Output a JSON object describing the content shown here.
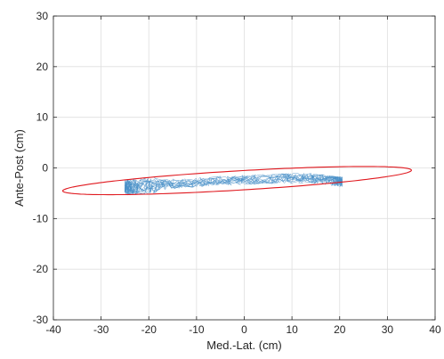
{
  "chart_data": {
    "type": "scatter",
    "title": "",
    "xlabel": "Med.-Lat. (cm)",
    "ylabel": "Ante-Post (cm)",
    "xlim": [
      -40,
      40
    ],
    "ylim": [
      -30,
      30
    ],
    "xticks": [
      -40,
      -30,
      -20,
      -10,
      0,
      10,
      20,
      30,
      40
    ],
    "yticks": [
      -30,
      -20,
      -10,
      0,
      10,
      20,
      30
    ],
    "xtick_labels": [
      "-40",
      "-30",
      "-20",
      "-10",
      "0",
      "10",
      "20",
      "30",
      "40"
    ],
    "ytick_labels": [
      "-30",
      "-20",
      "-10",
      "0",
      "10",
      "20",
      "30"
    ],
    "grid": true,
    "series": [
      {
        "kind": "trajectory",
        "color": "#4a90c8",
        "x_range": [
          -25,
          20.5
        ],
        "y_range": [
          -6.5,
          -0.5
        ],
        "trend": [
          [
            -25,
            -3.8
          ],
          [
            -22,
            -3.7
          ],
          [
            -20,
            -3.5
          ],
          [
            -17,
            -3.3
          ],
          [
            -14,
            -3.1
          ],
          [
            -11,
            -2.9
          ],
          [
            -8,
            -2.8
          ],
          [
            -5,
            -2.6
          ],
          [
            -2,
            -2.5
          ],
          [
            1,
            -2.3
          ],
          [
            4,
            -2.2
          ],
          [
            7,
            -2.1
          ],
          [
            10,
            -2.0
          ],
          [
            13,
            -2.0
          ],
          [
            16,
            -2.2
          ],
          [
            18,
            -2.5
          ],
          [
            20,
            -2.7
          ]
        ],
        "band_halfwidth": 1.0
      },
      {
        "kind": "ellipse",
        "color": "#e0191f",
        "center": [
          -1.5,
          -2.5
        ],
        "semi_major": 36.6,
        "semi_minor": 1.9,
        "angle_deg": 3.2
      }
    ]
  }
}
